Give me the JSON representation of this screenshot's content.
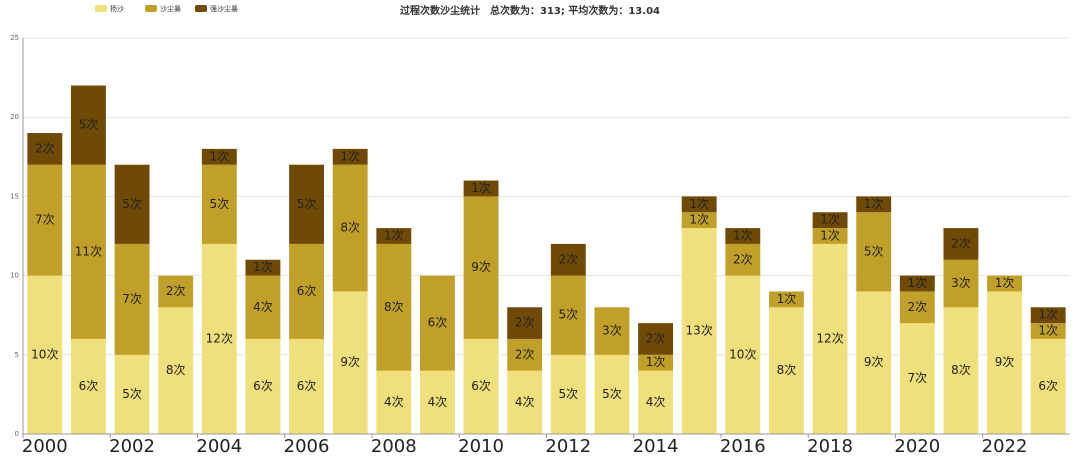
{
  "chart_data": {
    "type": "stacked_bar",
    "title": "过程次数沙尘统计　总次数为：313; 平均次数为：13.04",
    "categories": [
      "2000",
      null,
      "2002",
      null,
      "2004",
      null,
      "2006",
      null,
      "2008",
      null,
      "2010",
      null,
      "2012",
      null,
      "2014",
      null,
      "2016",
      null,
      "2018",
      null,
      "2020",
      null,
      "2022",
      null
    ],
    "series": [
      {
        "name": "扬沙",
        "color": "#efe07c",
        "values": [
          10,
          6,
          5,
          8,
          12,
          6,
          6,
          9,
          4,
          4,
          6,
          4,
          5,
          5,
          4,
          13,
          10,
          8,
          12,
          9,
          7,
          8,
          9,
          6
        ],
        "value_labels": [
          "10次",
          "6次",
          "5次",
          "8次",
          "12次",
          "6次",
          "6次",
          "9次",
          "4次",
          "4次",
          "6次",
          "4次",
          "5次",
          "5次",
          "4次",
          "13次",
          "10次",
          "8次",
          "12次",
          "9次",
          "7次",
          "8次",
          "9次",
          "6次"
        ]
      },
      {
        "name": "沙尘暴",
        "color": "#c1a02a",
        "values": [
          7,
          11,
          7,
          2,
          5,
          4,
          6,
          8,
          8,
          6,
          9,
          2,
          5,
          3,
          1,
          1,
          2,
          1,
          1,
          5,
          2,
          3,
          1,
          1
        ],
        "value_labels": [
          "7次",
          "11次",
          "7次",
          "2次",
          "5次",
          "4次",
          "6次",
          "8次",
          "8次",
          "6次",
          "9次",
          "2次",
          "5次",
          "3次",
          "1次",
          "1次",
          "2次",
          "1次",
          "1次",
          "5次",
          "2次",
          "3次",
          "1次",
          "1次"
        ]
      },
      {
        "name": "强沙尘暴",
        "color": "#6f4a07",
        "values": [
          2,
          5,
          5,
          null,
          1,
          1,
          5,
          1,
          1,
          null,
          1,
          2,
          2,
          null,
          2,
          1,
          1,
          null,
          1,
          1,
          1,
          2,
          null,
          1
        ],
        "value_labels": [
          "2次",
          "5次",
          "5次",
          null,
          "1次",
          "1次",
          "5次",
          "1次",
          "1次",
          null,
          "1次",
          "2次",
          "2次",
          null,
          "2次",
          "1次",
          "1次",
          null,
          "1次",
          "1次",
          "1次",
          "2次",
          null,
          "1次"
        ]
      }
    ],
    "ylim": [
      0,
      25
    ],
    "yticks": [
      0,
      5,
      10,
      15,
      20,
      25
    ],
    "grid": true,
    "legend": "top-left"
  }
}
